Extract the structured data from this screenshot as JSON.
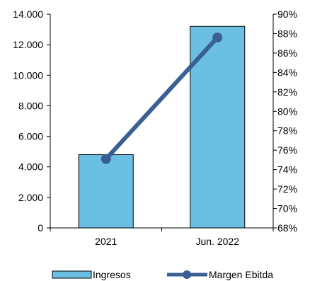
{
  "chart_data": {
    "type": "bar",
    "categories": [
      "2021",
      "Jun. 2022"
    ],
    "series": [
      {
        "name": "Ingresos",
        "type": "bar",
        "axis": "left",
        "values": [
          4800,
          13200
        ],
        "color": "#6bbfe3"
      },
      {
        "name": "Margen Ebitda",
        "type": "line",
        "axis": "right",
        "values": [
          75.1,
          87.6
        ],
        "color": "#3a5f93"
      }
    ],
    "y_left": {
      "range": [
        0,
        14000
      ],
      "ticks": [
        "0",
        "2.000",
        "4.000",
        "6.000",
        "8.000",
        "10.000",
        "12.000",
        "14.000"
      ]
    },
    "y_right": {
      "range": [
        68,
        90
      ],
      "ticks": [
        "68%",
        "70%",
        "72%",
        "74%",
        "76%",
        "78%",
        "80%",
        "82%",
        "84%",
        "86%",
        "88%",
        "90%"
      ]
    },
    "grid": false,
    "legend_position": "bottom"
  }
}
